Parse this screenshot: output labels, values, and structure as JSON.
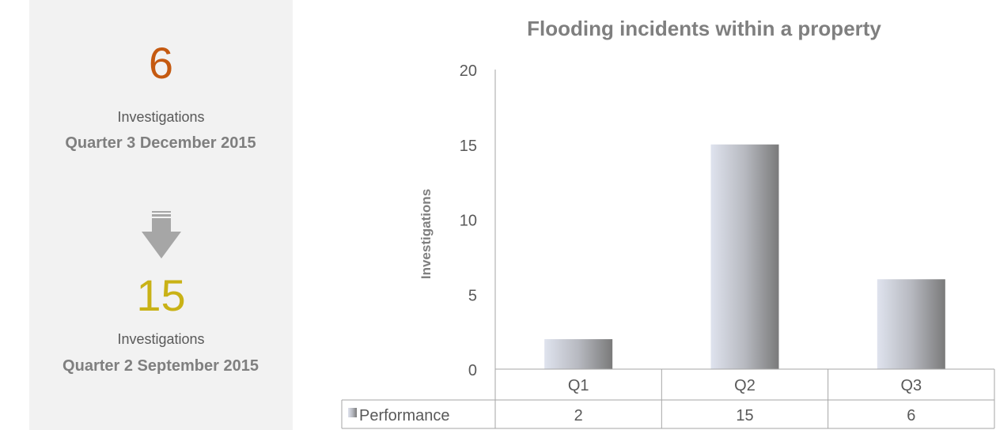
{
  "summary": {
    "current_value": "6",
    "current_unit": "Investigations",
    "current_period": "Quarter 3 December 2015",
    "previous_value": "15",
    "previous_unit": "Investigations",
    "previous_period": "Quarter 2 September 2015",
    "current_color": "#c55a11",
    "previous_color": "#c9b216",
    "arrow_icon": "down-arrow-icon"
  },
  "chart_data": {
    "type": "bar",
    "title": "Flooding incidents within a property",
    "ylabel": "Investigations",
    "xlabel": "",
    "categories": [
      "Q1",
      "Q2",
      "Q3"
    ],
    "series": [
      {
        "name": "Performance",
        "values": [
          2,
          15,
          6
        ]
      }
    ],
    "ylim": [
      0,
      20
    ],
    "yticks": [
      0,
      5,
      10,
      15,
      20
    ],
    "grid": false,
    "legend": "data-table",
    "data_table": true
  }
}
